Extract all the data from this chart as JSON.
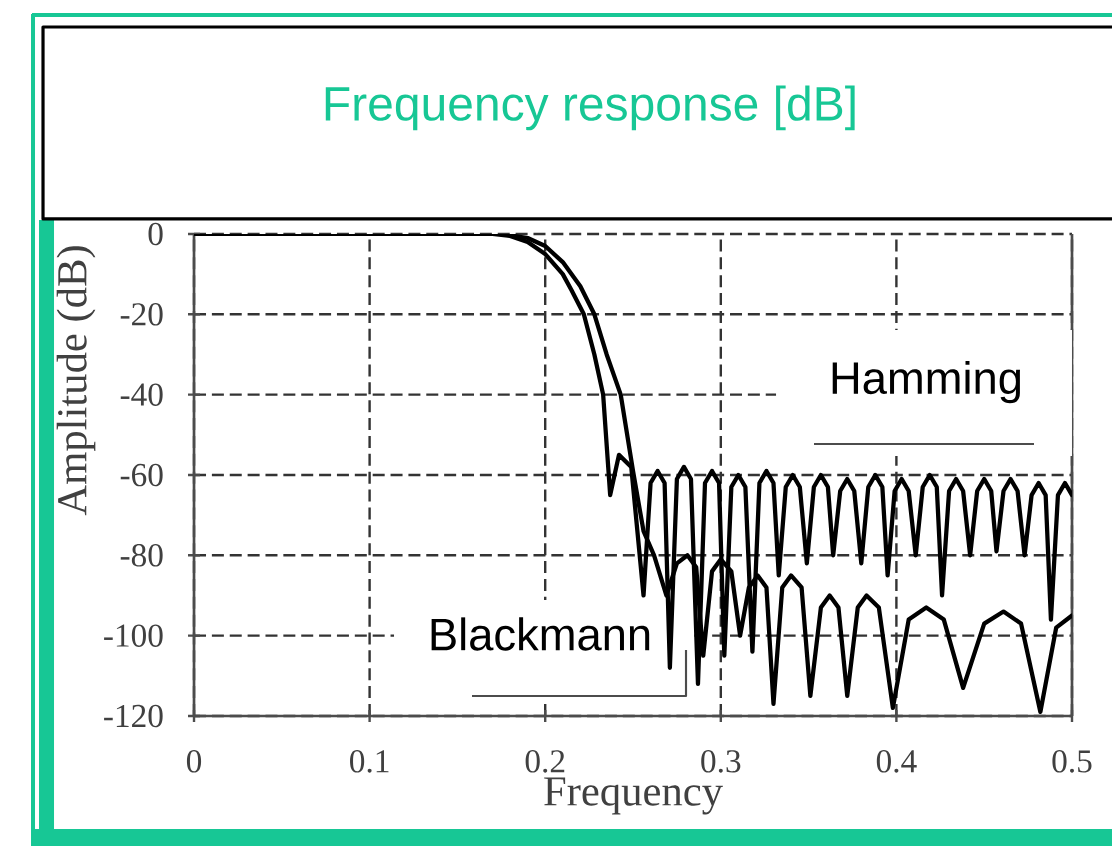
{
  "chart_data": {
    "type": "line",
    "title": "Frequency response [dB]",
    "xlabel": "Frequency",
    "ylabel": "Amplitude (dB)",
    "series": [
      {
        "name": "Hamming",
        "color": "#000000",
        "x": [
          0,
          0.17,
          0.18,
          0.19,
          0.2,
          0.21,
          0.215,
          0.222,
          0.228,
          0.233,
          0.237,
          0.242,
          0.249,
          0.256,
          0.26,
          0.264,
          0.268,
          0.271,
          0.275,
          0.279,
          0.283,
          0.287,
          0.291,
          0.295,
          0.299,
          0.302,
          0.306,
          0.31,
          0.314,
          0.318,
          0.322,
          0.326,
          0.33,
          0.333,
          0.337,
          0.341,
          0.345,
          0.349,
          0.353,
          0.357,
          0.361,
          0.364,
          0.368,
          0.372,
          0.376,
          0.38,
          0.384,
          0.388,
          0.392,
          0.395,
          0.399,
          0.403,
          0.407,
          0.411,
          0.415,
          0.419,
          0.423,
          0.426,
          0.43,
          0.434,
          0.438,
          0.442,
          0.446,
          0.45,
          0.454,
          0.457,
          0.461,
          0.465,
          0.469,
          0.473,
          0.477,
          0.481,
          0.485,
          0.488,
          0.492,
          0.496,
          0.5
        ],
        "values": [
          0,
          0,
          -0.5,
          -2,
          -5,
          -10,
          -14,
          -20,
          -30,
          -40,
          -65,
          -55,
          -58,
          -90,
          -62,
          -59,
          -62,
          -108,
          -61,
          -58,
          -61,
          -112,
          -62,
          -59,
          -62,
          -105,
          -63,
          -60,
          -63,
          -104,
          -62,
          -59,
          -62,
          -85,
          -63,
          -60,
          -63,
          -82,
          -63,
          -60,
          -63,
          -80,
          -64,
          -61,
          -64,
          -82,
          -63,
          -60,
          -63,
          -85,
          -64,
          -61,
          -64,
          -80,
          -63,
          -60,
          -63,
          -90,
          -64,
          -61,
          -64,
          -80,
          -64,
          -61,
          -64,
          -79,
          -64,
          -61,
          -64,
          -80,
          -65,
          -62,
          -65,
          -96,
          -65,
          -62,
          -65
        ]
      },
      {
        "name": "Blackmann",
        "color": "#000000",
        "x": [
          0,
          0.175,
          0.19,
          0.2,
          0.21,
          0.22,
          0.228,
          0.235,
          0.243,
          0.25,
          0.256,
          0.262,
          0.269,
          0.275,
          0.281,
          0.286,
          0.29,
          0.295,
          0.3,
          0.306,
          0.311,
          0.316,
          0.321,
          0.326,
          0.33,
          0.335,
          0.34,
          0.346,
          0.351,
          0.357,
          0.362,
          0.367,
          0.372,
          0.378,
          0.383,
          0.39,
          0.398,
          0.407,
          0.417,
          0.427,
          0.438,
          0.45,
          0.461,
          0.471,
          0.482,
          0.491,
          0.5
        ],
        "values": [
          0,
          0,
          -1,
          -3,
          -7,
          -13,
          -20,
          -30,
          -40,
          -59,
          -74,
          -80,
          -90,
          -82,
          -80,
          -83,
          -105,
          -84,
          -81,
          -84,
          -100,
          -88,
          -85,
          -88,
          -117,
          -88,
          -85,
          -88,
          -115,
          -93,
          -90,
          -93,
          -115,
          -93,
          -90,
          -93,
          -118,
          -96,
          -93,
          -96,
          -113,
          -97,
          -94,
          -97,
          -119,
          -98,
          -95
        ]
      }
    ],
    "xlim": [
      0,
      0.5
    ],
    "ylim": [
      -120,
      0
    ],
    "xticks": [
      0,
      0.1,
      0.2,
      0.3,
      0.4,
      0.5
    ],
    "yticks": [
      -120,
      -100,
      -80,
      -60,
      -40,
      -20,
      0
    ],
    "grid": true,
    "line_style": "solid"
  }
}
